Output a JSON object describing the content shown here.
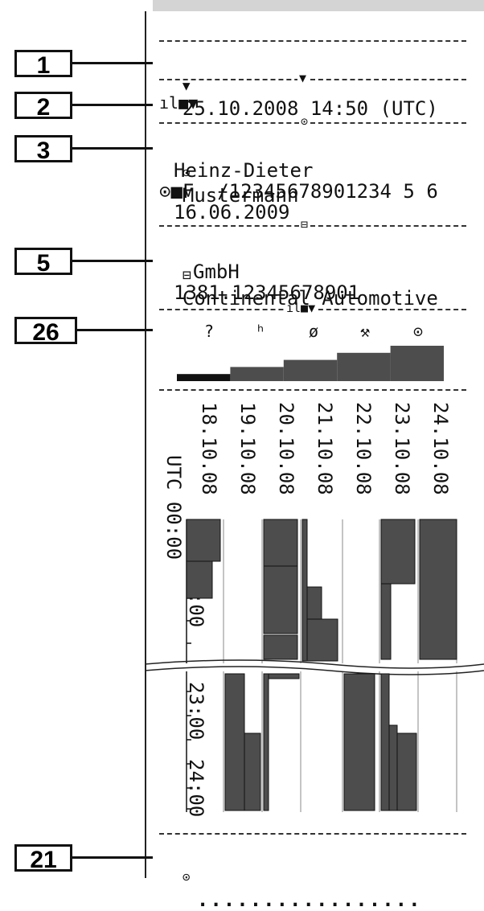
{
  "callouts": [
    "1",
    "2",
    "3",
    "5",
    "26",
    "21"
  ],
  "header": {
    "date_line": "25.10.2008 14:50 (UTC)",
    "date_prefix_symbol": "▼",
    "section_symbol": "ıl■▼"
  },
  "driver": {
    "symbol": "⊙",
    "surname": "Mustermann",
    "first_name": "Heinz-Dieter",
    "card_line": "⊙■F  /12345678901234 5 6",
    "expiry": "16.06.2009"
  },
  "manufacturer": {
    "symbol": "⊟",
    "name_line": "Continental Automotive",
    "name_line2": "GmbH",
    "id": "1381.12345678901"
  },
  "speed_section": {
    "symbol": "ıl■▼",
    "icons": [
      "?",
      "ʰ",
      "ø",
      "⚒",
      "⊙"
    ]
  },
  "chart_data": {
    "type": "bar",
    "title": "",
    "categories": [
      "?",
      "ʰ",
      "ø",
      "⚒",
      "⊙"
    ],
    "values": [
      1,
      2,
      3,
      4,
      5
    ],
    "xlabel": "",
    "ylabel": ""
  },
  "timeline": {
    "tz_label": "UTC 00:00",
    "time_01": "01:00",
    "time_23": "23:00",
    "time_24": "24:00",
    "dates": [
      "18.10.08",
      "19.10.08",
      "20.10.08",
      "21.10.08",
      "22.10.08",
      "23.10.08",
      "24.10.08"
    ]
  },
  "footer": {
    "symbol": "⊙",
    "signature_dots": "................."
  }
}
